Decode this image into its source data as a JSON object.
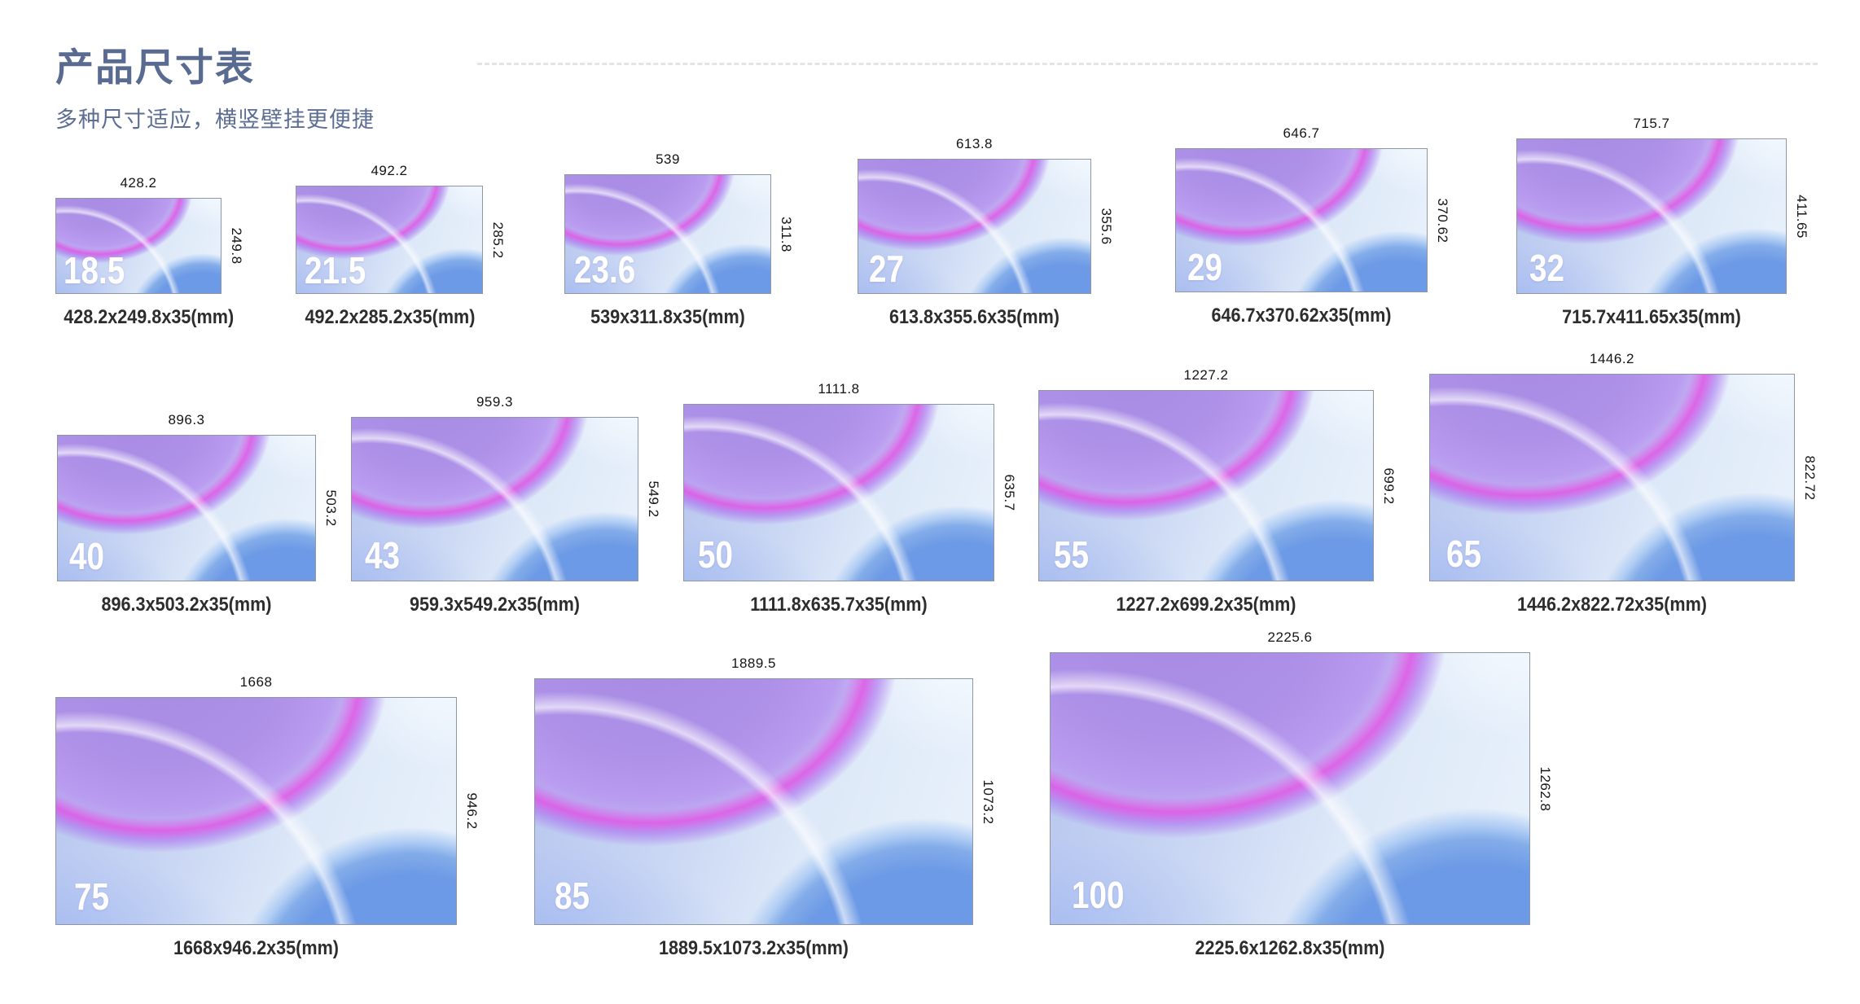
{
  "header": {
    "title": "产品尺寸表",
    "subtitle": "多种尺寸适应，横竖壁挂更便捷"
  },
  "colors": {
    "heading": "#596b90",
    "label": "#151515",
    "caption": "#2d2d2d",
    "screen_purple": "#a78be3",
    "screen_magenta": "#e056e5",
    "screen_blue": "#6d9ae6"
  },
  "products": [
    {
      "inches": "18.5",
      "width_mm": "428.2",
      "height_mm": "249.8",
      "depth_mm": "35",
      "caption": "428.2x249.8x35(mm)"
    },
    {
      "inches": "21.5",
      "width_mm": "492.2",
      "height_mm": "285.2",
      "depth_mm": "35",
      "caption": "492.2x285.2x35(mm)"
    },
    {
      "inches": "23.6",
      "width_mm": "539",
      "height_mm": "311.8",
      "depth_mm": "35",
      "caption": "539x311.8x35(mm)"
    },
    {
      "inches": "27",
      "width_mm": "613.8",
      "height_mm": "355.6",
      "depth_mm": "35",
      "caption": "613.8x355.6x35(mm)"
    },
    {
      "inches": "29",
      "width_mm": "646.7",
      "height_mm": "370.62",
      "depth_mm": "35",
      "caption": "646.7x370.62x35(mm)"
    },
    {
      "inches": "32",
      "width_mm": "715.7",
      "height_mm": "411.65",
      "depth_mm": "35",
      "caption": "715.7x411.65x35(mm)"
    },
    {
      "inches": "40",
      "width_mm": "896.3",
      "height_mm": "503.2",
      "depth_mm": "35",
      "caption": "896.3x503.2x35(mm)"
    },
    {
      "inches": "43",
      "width_mm": "959.3",
      "height_mm": "549.2",
      "depth_mm": "35",
      "caption": "959.3x549.2x35(mm)"
    },
    {
      "inches": "50",
      "width_mm": "1111.8",
      "height_mm": "635.7",
      "depth_mm": "35",
      "caption": "1111.8x635.7x35(mm)"
    },
    {
      "inches": "55",
      "width_mm": "1227.2",
      "height_mm": "699.2",
      "depth_mm": "35",
      "caption": "1227.2x699.2x35(mm)"
    },
    {
      "inches": "65",
      "width_mm": "1446.2",
      "height_mm": "822.72",
      "depth_mm": "35",
      "caption": "1446.2x822.72x35(mm)"
    },
    {
      "inches": "75",
      "width_mm": "1668",
      "height_mm": "946.2",
      "depth_mm": "35",
      "caption": "1668x946.2x35(mm)"
    },
    {
      "inches": "85",
      "width_mm": "1889.5",
      "height_mm": "1073.2",
      "depth_mm": "35",
      "caption": "1889.5x1073.2x35(mm)"
    },
    {
      "inches": "100",
      "width_mm": "2225.6",
      "height_mm": "1262.8",
      "depth_mm": "35",
      "caption": "2225.6x1262.8x35(mm)"
    }
  ]
}
